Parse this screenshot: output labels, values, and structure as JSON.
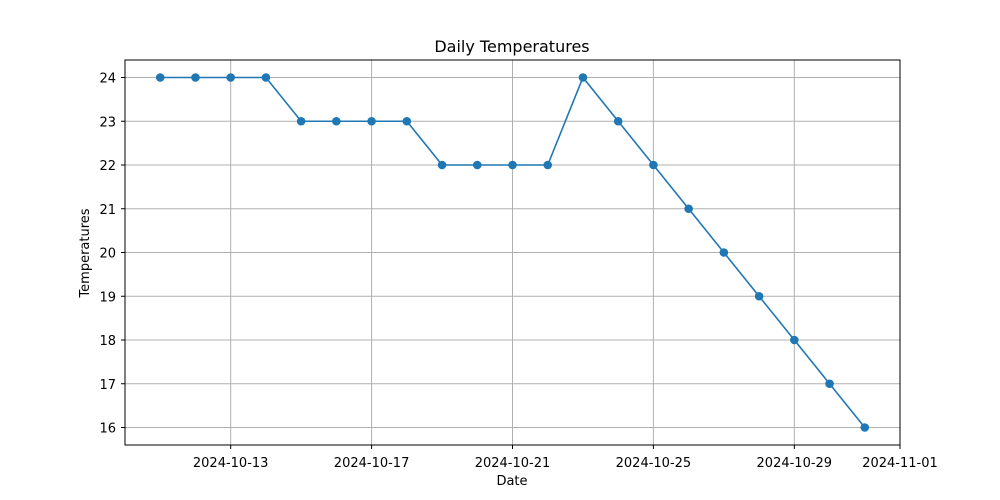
{
  "chart_data": {
    "type": "line",
    "title": "Daily Temperatures",
    "xlabel": "Date",
    "ylabel": "Temperatures",
    "x_type": "date",
    "xlim": [
      "2024-10-10",
      "2024-11-01"
    ],
    "ylim": [
      15.6,
      24.4
    ],
    "x_ticks": [
      "2024-10-13",
      "2024-10-17",
      "2024-10-21",
      "2024-10-25",
      "2024-10-29",
      "2024-11-01"
    ],
    "y_ticks": [
      16,
      17,
      18,
      19,
      20,
      21,
      22,
      23,
      24
    ],
    "grid": true,
    "legend": "none",
    "series": [
      {
        "color": "#1f77b4",
        "marker": "circle",
        "points": [
          {
            "x": "2024-10-11",
            "y": 24
          },
          {
            "x": "2024-10-12",
            "y": 24
          },
          {
            "x": "2024-10-13",
            "y": 24
          },
          {
            "x": "2024-10-14",
            "y": 24
          },
          {
            "x": "2024-10-15",
            "y": 23
          },
          {
            "x": "2024-10-16",
            "y": 23
          },
          {
            "x": "2024-10-17",
            "y": 23
          },
          {
            "x": "2024-10-18",
            "y": 23
          },
          {
            "x": "2024-10-19",
            "y": 22
          },
          {
            "x": "2024-10-20",
            "y": 22
          },
          {
            "x": "2024-10-21",
            "y": 22
          },
          {
            "x": "2024-10-22",
            "y": 22
          },
          {
            "x": "2024-10-23",
            "y": 24
          },
          {
            "x": "2024-10-24",
            "y": 23
          },
          {
            "x": "2024-10-25",
            "y": 22
          },
          {
            "x": "2024-10-26",
            "y": 21
          },
          {
            "x": "2024-10-27",
            "y": 20
          },
          {
            "x": "2024-10-28",
            "y": 19
          },
          {
            "x": "2024-10-29",
            "y": 18
          },
          {
            "x": "2024-10-30",
            "y": 17
          },
          {
            "x": "2024-10-31",
            "y": 16
          }
        ]
      }
    ]
  }
}
